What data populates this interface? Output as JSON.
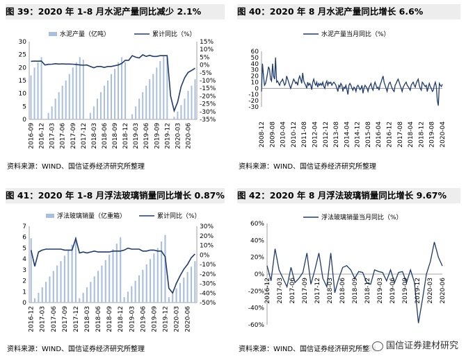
{
  "colors": {
    "bar": "#a9bfe0",
    "line": "#1f3a6e",
    "title_bg": "#ededed"
  },
  "watermark": {
    "text": "国信证券建材研究",
    "icon": "wechat-icon"
  },
  "chart_data": [
    {
      "id": "c39",
      "type": "bar+line",
      "title": "图 39：2020 年 1-8 月水泥产量同比减少 2.1%",
      "source": "资料来源：WIND、国信证券经济研究所整理",
      "legend": [
        "水泥产量（亿吨）",
        "累计同比（%）"
      ],
      "categories": [
        "2016-09",
        "2016-10",
        "2016-11",
        "2016-12",
        "2017-01",
        "2017-02",
        "2017-03",
        "2017-04",
        "2017-05",
        "2017-06",
        "2017-07",
        "2017-08",
        "2017-09",
        "2017-10",
        "2017-11",
        "2017-12",
        "2018-01",
        "2018-02",
        "2018-03",
        "2018-04",
        "2018-05",
        "2018-06",
        "2018-07",
        "2018-08",
        "2018-09",
        "2018-10",
        "2018-11",
        "2018-12",
        "2019-01",
        "2019-02",
        "2019-03",
        "2019-04",
        "2019-05",
        "2019-06",
        "2019-07",
        "2019-08",
        "2019-09",
        "2019-10",
        "2019-11",
        "2019-12",
        "2020-01",
        "2020-02",
        "2020-03",
        "2020-04",
        "2020-05",
        "2020-06",
        "2020-07",
        "2020-08"
      ],
      "x_tick_labels": [
        "2016-09",
        "2016-12",
        "2017-03",
        "2017-06",
        "2017-09",
        "2017-12",
        "2018-03",
        "2018-06",
        "2018-09",
        "2018-12",
        "2019-03",
        "2019-06",
        "2019-09",
        "2019-12",
        "2020-03",
        "2020-06"
      ],
      "bar_values": [
        17,
        20,
        22,
        24,
        0,
        2.5,
        5,
        8,
        10.5,
        13,
        15,
        17.5,
        20,
        22,
        24,
        23,
        0,
        2.5,
        5,
        8,
        10.5,
        13,
        15,
        17.5,
        19.5,
        22,
        24,
        22,
        0,
        2,
        5,
        8,
        10.5,
        13,
        15.5,
        17.5,
        20,
        22.5,
        24.5,
        24,
        0,
        1,
        3,
        5.5,
        8,
        11,
        13,
        15.5
      ],
      "line_values": [
        2.3,
        2.5,
        2.4,
        2.5,
        0,
        0.4,
        0.5,
        0.8,
        0.6,
        0.7,
        0.6,
        0.6,
        0.5,
        0.3,
        0,
        -0.2,
        0,
        -1.0,
        -1.8,
        -1.0,
        -1.0,
        -1.6,
        -1.0,
        -1.0,
        -0.5,
        0,
        1.0,
        3.0,
        3.0,
        6.0,
        5.0,
        4.5,
        6.5,
        5.5,
        6.2,
        5.5,
        5.5,
        6.0,
        6.0,
        6.0,
        -20,
        -29.5,
        -23.9,
        -13.9,
        -8.3,
        -4.8,
        -3.5,
        -2.1
      ],
      "left_axis": {
        "ylim": [
          0,
          30
        ],
        "ticks": [
          "0",
          "5",
          "10",
          "15",
          "20",
          "25",
          "30"
        ]
      },
      "right_axis": {
        "ylim": [
          -35,
          15
        ],
        "ticks": [
          "15%",
          "10%",
          "5%",
          "0%",
          "-5%",
          "-10%",
          "-15%",
          "-20%",
          "-25%",
          "-30%",
          "-35%"
        ]
      }
    },
    {
      "id": "c40",
      "type": "line",
      "title": "图 40：2020 年 8 月水泥产量同比增长 6.6%",
      "source": "资料来源：WIND、国信证券经济研究所整理",
      "legend": [
        "水泥产量当月同比（%）"
      ],
      "x_tick_labels": [
        "2008-12",
        "2009-08",
        "2010-04",
        "2010-12",
        "2011-08",
        "2012-04",
        "2012-12",
        "2013-08",
        "2014-04",
        "2014-12",
        "2015-08",
        "2016-04",
        "2016-12",
        "2017-08",
        "2018-04",
        "2018-12",
        "2019-08",
        "2020-04"
      ],
      "line_values": [
        -5,
        40,
        20,
        5,
        8,
        15,
        25,
        35,
        30,
        15,
        12,
        40,
        20,
        15,
        50,
        10,
        12,
        8,
        5,
        10,
        12,
        15,
        10,
        5,
        8,
        20,
        15,
        10,
        5,
        0,
        5,
        10,
        15,
        12,
        8,
        10,
        5,
        15,
        20,
        15,
        8,
        25,
        12,
        8,
        5,
        0,
        10,
        5,
        8,
        5,
        -2,
        10,
        15,
        8,
        5,
        10,
        2,
        8,
        5,
        8,
        5,
        10,
        3,
        0,
        8,
        12,
        5,
        10,
        8,
        10,
        5,
        8,
        10,
        8,
        5,
        0,
        -5,
        5,
        2,
        8,
        5,
        -5,
        2,
        0,
        5,
        -2,
        -10,
        5,
        8,
        5,
        0,
        -3,
        2,
        0,
        -5,
        3,
        5,
        2,
        -2,
        0,
        5,
        -8,
        0,
        5,
        3,
        0,
        -5,
        2,
        5,
        8,
        0,
        -3,
        5,
        10,
        5,
        0,
        2,
        -3,
        5,
        10,
        15,
        20,
        10,
        5,
        0,
        -5,
        3,
        8,
        10,
        5,
        0,
        -3,
        -5,
        5,
        8,
        12,
        15,
        10,
        5,
        0,
        -5,
        2,
        5,
        8,
        10,
        5,
        3,
        0,
        -3,
        5,
        8,
        10,
        5,
        2,
        8,
        12,
        15,
        5,
        0,
        -3,
        10,
        8,
        5,
        3,
        5,
        -5,
        2,
        8,
        3,
        0,
        -5,
        -3,
        5,
        10,
        3,
        -20,
        -28,
        8,
        5,
        3,
        6.6
      ],
      "ylim": [
        -30,
        60
      ],
      "y_ticks": [
        "60",
        "50",
        "40",
        "30",
        "20",
        "10",
        "0",
        "-10",
        "-20",
        "-30"
      ]
    },
    {
      "id": "c41",
      "type": "bar+line",
      "title": "图 41：2020 年 1-8 月浮法玻璃销量同比增长 0.87%",
      "source": "资料来源：WIND、国信证券经济研究所整理",
      "legend": [
        "浮法玻璃销量（亿重箱）",
        "累计同比（%）"
      ],
      "categories": [
        "2016-12",
        "2017-01",
        "2017-02",
        "2017-03",
        "2017-04",
        "2017-05",
        "2017-06",
        "2017-07",
        "2017-08",
        "2017-09",
        "2017-10",
        "2017-11",
        "2017-12",
        "2018-01",
        "2018-02",
        "2018-03",
        "2018-04",
        "2018-05",
        "2018-06",
        "2018-07",
        "2018-08",
        "2018-09",
        "2018-10",
        "2018-11",
        "2018-12",
        "2019-01",
        "2019-02",
        "2019-03",
        "2019-04",
        "2019-05",
        "2019-06",
        "2019-07",
        "2019-08",
        "2019-09",
        "2019-10",
        "2019-11",
        "2019-12",
        "2020-01",
        "2020-02",
        "2020-03",
        "2020-04",
        "2020-05",
        "2020-06",
        "2020-07",
        "2020-08"
      ],
      "x_tick_labels": [
        "2016-12",
        "2017-03",
        "2017-06",
        "2017-09",
        "2017-12",
        "2018-03",
        "2018-06",
        "2018-09",
        "2018-12",
        "2019-03",
        "2019-06",
        "2019-09",
        "2019-12",
        "2020-03",
        "2020-06"
      ],
      "bar_values": [
        5.9,
        0.4,
        0.9,
        1.4,
        1.9,
        2.4,
        2.9,
        3.4,
        3.8,
        4.3,
        4.8,
        5.3,
        6.0,
        0.4,
        0.9,
        1.4,
        1.9,
        2.4,
        2.9,
        3.4,
        3.9,
        4.4,
        4.9,
        5.4,
        6.0,
        0.5,
        1.0,
        1.5,
        2.0,
        2.5,
        3.0,
        3.5,
        4.0,
        4.5,
        5.0,
        5.6,
        6.2,
        0.5,
        0.8,
        1.3,
        1.8,
        2.3,
        2.8,
        3.3,
        3.8
      ],
      "line_values": [
        5,
        -12,
        3,
        5,
        6,
        6,
        6,
        6,
        6,
        5,
        5,
        5,
        17,
        2,
        3,
        2,
        3,
        4,
        3,
        3,
        3,
        3,
        4,
        4,
        4,
        5,
        7,
        6,
        6,
        6,
        4,
        4,
        5,
        5,
        4,
        4,
        -2,
        -35,
        -40,
        -30,
        -22,
        -15,
        -10,
        -3,
        0.87
      ],
      "left_axis": {
        "ylim": [
          0,
          7
        ],
        "ticks": [
          "0",
          "1",
          "2",
          "3",
          "4",
          "5",
          "6",
          "7"
        ]
      },
      "right_axis": {
        "ylim": [
          -50,
          30
        ],
        "ticks": [
          "30%",
          "20%",
          "10%",
          "0%",
          "-10%",
          "-20%",
          "-30%",
          "-40%",
          "-50%"
        ]
      }
    },
    {
      "id": "c42",
      "type": "line",
      "title": "图 42：2020 年 8 月浮法玻璃销量同比增长 9.67%",
      "source": "资料来源：WIND、国信证券经济研究所整理",
      "legend": [
        "浮法玻璃销量当月同比（%）"
      ],
      "x_tick_labels": [
        "2016-12",
        "2017-03",
        "2017-06",
        "2017-09",
        "2017-12",
        "2018-03",
        "2018-06",
        "2018-09",
        "2018-12",
        "2019-03",
        "2019-06",
        "2019-09",
        "2019-12",
        "2020-03",
        "2020-06"
      ],
      "line_values": [
        10,
        -8,
        30,
        5,
        -5,
        -15,
        8,
        -10,
        -5,
        2,
        25,
        -12,
        5,
        25,
        -5,
        -15,
        25,
        -22,
        -5,
        8,
        10,
        5,
        -5,
        3,
        2,
        -10,
        -12,
        5,
        3,
        2,
        -8,
        5,
        -10,
        2,
        3,
        -10,
        5,
        -10,
        -58,
        -30,
        0,
        15,
        38,
        20,
        9.67
      ],
      "ylim": [
        -60,
        60
      ],
      "y_ticks": [
        "60%",
        "40%",
        "20%",
        "0%",
        "-20%",
        "-40%",
        "-60%"
      ]
    }
  ]
}
